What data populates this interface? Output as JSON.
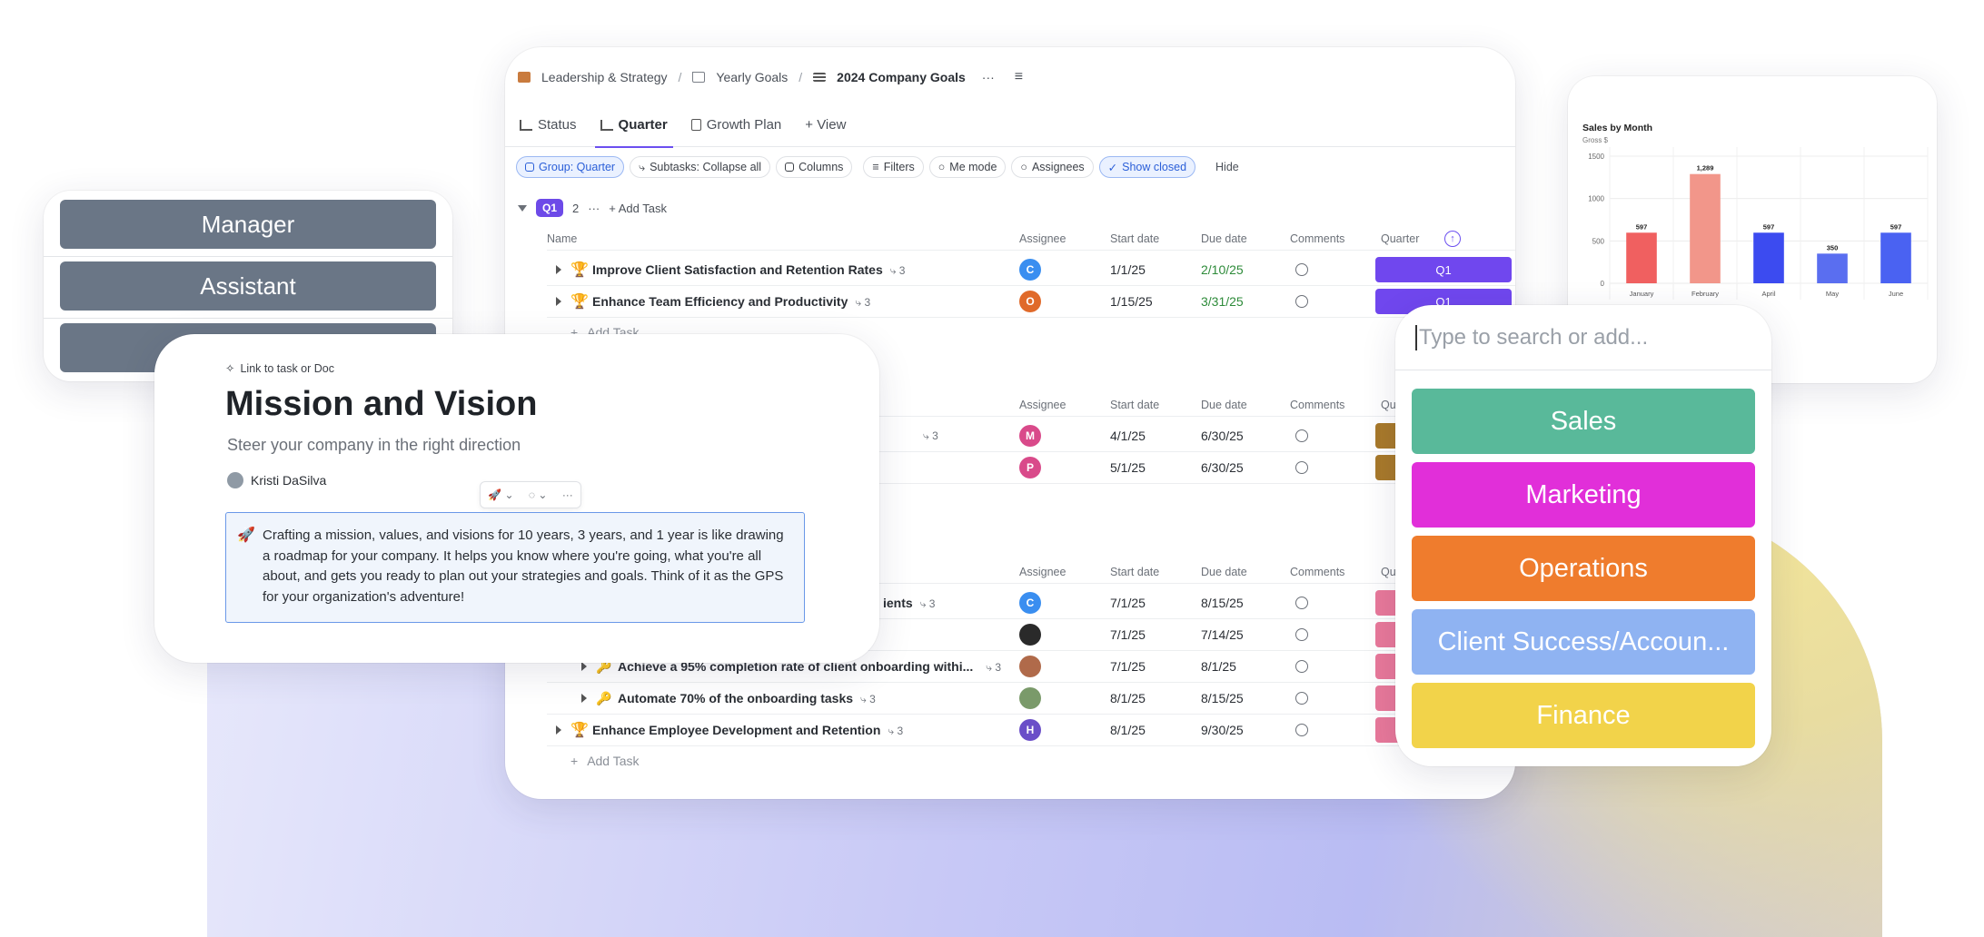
{
  "breadcrumb": {
    "space": "Leadership & Strategy",
    "folder": "Yearly Goals",
    "list": "2024 Company Goals",
    "more": "···"
  },
  "views": [
    {
      "label": "Status"
    },
    {
      "label": "Quarter"
    },
    {
      "label": "Growth Plan"
    },
    {
      "label": "+ View"
    }
  ],
  "toolbar": {
    "group": "Group: Quarter",
    "subtasks": "Subtasks: Collapse all",
    "columns": "Columns",
    "filters": "Filters",
    "me_mode": "Me mode",
    "assignees": "Assignees",
    "show_closed": "Show closed",
    "hide": "Hide"
  },
  "columns": {
    "name": "Name",
    "assignee": "Assignee",
    "start": "Start date",
    "due": "Due date",
    "comments": "Comments",
    "quarter": "Quarter"
  },
  "group_q1": {
    "badge": "Q1",
    "count": "2",
    "more": "···",
    "add": "Add Task"
  },
  "rows_q1": [
    {
      "name": "Improve Client Satisfaction and Retention Rates",
      "sub": "3",
      "avatar": "C",
      "start": "1/1/25",
      "due": "2/10/25",
      "quarter": "Q1"
    },
    {
      "name": "Enhance Team Efficiency and Productivity",
      "sub": "3",
      "avatar": "O",
      "start": "1/15/25",
      "due": "3/31/25",
      "quarter": "Q1"
    }
  ],
  "rows_q2": [
    {
      "sub": "3",
      "avatar": "M",
      "start": "4/1/25",
      "due": "6/30/25"
    },
    {
      "avatar": "P",
      "start": "5/1/25",
      "due": "6/30/25"
    }
  ],
  "rows_q3": [
    {
      "name": "ients",
      "sub": "3",
      "avatar": "C",
      "start": "7/1/25",
      "due": "8/15/25"
    },
    {
      "name": "",
      "avatar": "",
      "start": "7/1/25",
      "due": "7/14/25"
    },
    {
      "name": "Achieve a 95% completion rate of client onboarding withi...",
      "sub": "3",
      "avatar": "",
      "start": "7/1/25",
      "due": "8/1/25"
    },
    {
      "name": "Automate 70% of the onboarding tasks",
      "sub": "3",
      "avatar": "",
      "start": "8/1/25",
      "due": "8/15/25"
    },
    {
      "name": "Enhance Employee Development and Retention",
      "sub": "3",
      "avatar": "H",
      "start": "8/1/25",
      "due": "9/30/25"
    }
  ],
  "add_task": "Add Task",
  "roles": [
    "Manager",
    "Assistant",
    ""
  ],
  "doc": {
    "link": "Link to task or Doc",
    "title": "Mission and Vision",
    "subtitle": "Steer your company in the right direction",
    "author": "Kristi DaSilva",
    "body": "Crafting a mission, values, and visions for 10 years, 3 years, and 1 year is like drawing a roadmap for your company. It helps you know where you're going, what you're all about, and gets you ready to plan out your strategies and goals. Think of it as the GPS for your or­ganization's adventure!"
  },
  "chart_data": {
    "type": "bar",
    "title": "Sales by Month",
    "subtitle": "Gross $",
    "categories": [
      "January",
      "February",
      "April",
      "May",
      "June"
    ],
    "values": [
      597,
      1289,
      597,
      350,
      597
    ],
    "data_labels": [
      "597",
      "1,289",
      "597",
      "350",
      "597"
    ],
    "yticks": [
      "0",
      "500",
      "1000",
      "1500"
    ],
    "ylim": [
      0,
      1500
    ],
    "colors": [
      "#f06060",
      "#f2968a",
      "#3c4bf0",
      "#5a6ef0",
      "#4a62f2"
    ],
    "grid": true
  },
  "dropdown": {
    "placeholder": "Type to search or add...",
    "options": [
      {
        "label": "Sales",
        "color": "#59b99a"
      },
      {
        "label": "Marketing",
        "color": "#e12fd9"
      },
      {
        "label": "Operations",
        "color": "#ef7c2d"
      },
      {
        "label": "Client Success/Accoun...",
        "color": "#8fb3f2"
      },
      {
        "label": "Finance",
        "color": "#f2d34a"
      }
    ]
  },
  "colors": {
    "accent": "#6d4ae8",
    "quarter_q2": "#a8792a",
    "quarter_q3": "#e8789a"
  }
}
